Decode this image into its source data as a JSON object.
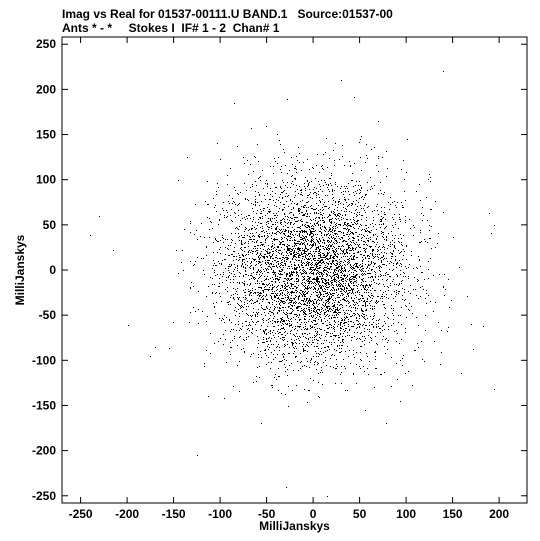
{
  "header": {
    "title_line1": "Imag vs Real for 01537-00111.U BAND.1   Source:01537-00",
    "title_line2": "Ants * - *     Stokes I  IF# 1 - 2  Chan# 1"
  },
  "chart_data": {
    "type": "scatter",
    "xlabel": "MilliJanskys",
    "ylabel": "MilliJanskys",
    "xlim": [
      -270,
      230
    ],
    "ylim": [
      -258,
      258
    ],
    "xticks": [
      -250,
      -200,
      -150,
      -100,
      -50,
      0,
      50,
      100,
      150,
      200
    ],
    "yticks": [
      -250,
      -200,
      -150,
      -100,
      -50,
      0,
      50,
      100,
      150,
      200,
      250
    ],
    "grid": false,
    "point_color": "#000000",
    "distribution": {
      "shape": "circular gaussian cloud",
      "center": [
        0,
        0
      ],
      "sigma_x": 50,
      "sigma_y": 50,
      "n_points": 60000
    },
    "notable_outliers": [
      {
        "x": -215,
        "y": 22
      },
      {
        "x": -175,
        "y": -95
      },
      {
        "x": 195,
        "y": -132
      },
      {
        "x": 170,
        "y": -60
      },
      {
        "x": 183,
        "y": -62
      },
      {
        "x": 15,
        "y": -250
      },
      {
        "x": 195,
        "y": 50
      },
      {
        "x": 30,
        "y": 210
      },
      {
        "x": 140,
        "y": 220
      },
      {
        "x": -125,
        "y": -205
      },
      {
        "x": -230,
        "y": 60
      },
      {
        "x": -85,
        "y": 185
      }
    ]
  }
}
